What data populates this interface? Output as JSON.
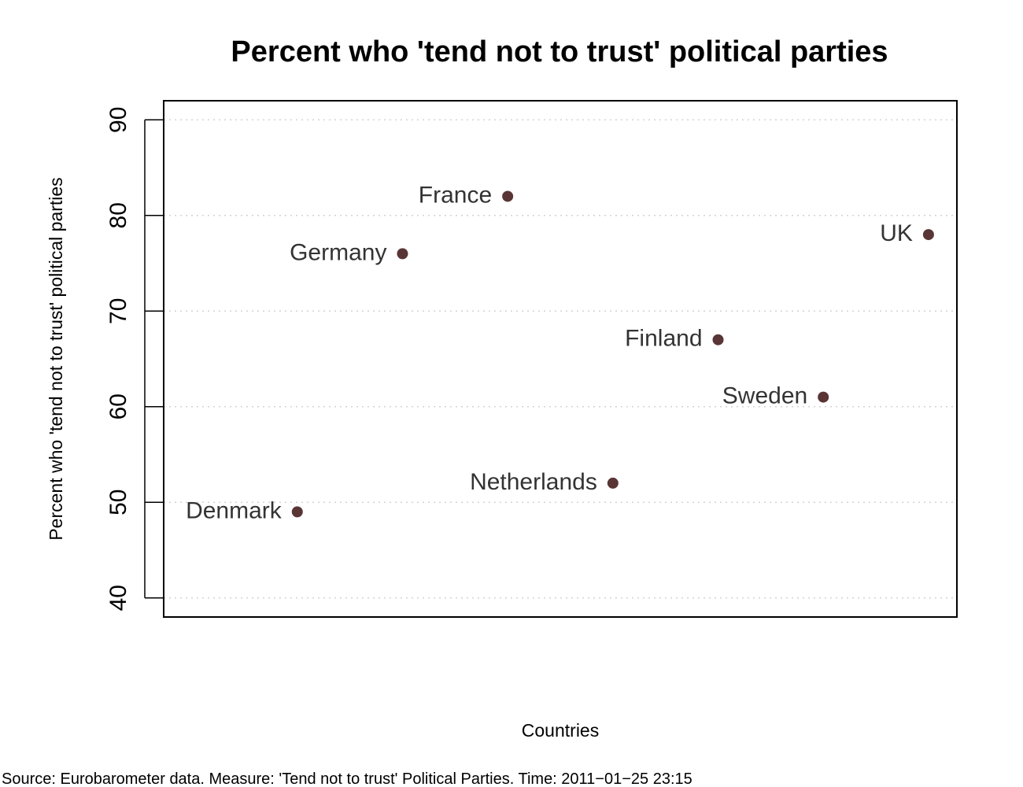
{
  "chart_data": {
    "type": "scatter",
    "title": "Percent who 'tend not to trust' political parties",
    "xlabel": "Countries",
    "ylabel": "Percent who 'tend not to trust' political parties",
    "ylim": [
      38,
      92
    ],
    "yticks": [
      40,
      50,
      60,
      70,
      80,
      90
    ],
    "grid": true,
    "point_color": "#5a3535",
    "points": [
      {
        "label": "Denmark",
        "x": 1,
        "y": 49
      },
      {
        "label": "Germany",
        "x": 2,
        "y": 76
      },
      {
        "label": "France",
        "x": 3,
        "y": 82
      },
      {
        "label": "Netherlands",
        "x": 4,
        "y": 52
      },
      {
        "label": "Finland",
        "x": 5,
        "y": 67
      },
      {
        "label": "Sweden",
        "x": 6,
        "y": 61
      },
      {
        "label": "UK",
        "x": 7,
        "y": 78
      }
    ],
    "xlim": [
      -0.27,
      7.27
    ]
  },
  "footer": {
    "source": "Source: Eurobarometer data. Measure: 'Tend not to trust' Political Parties. Time:   2011−01−25 23:15"
  }
}
